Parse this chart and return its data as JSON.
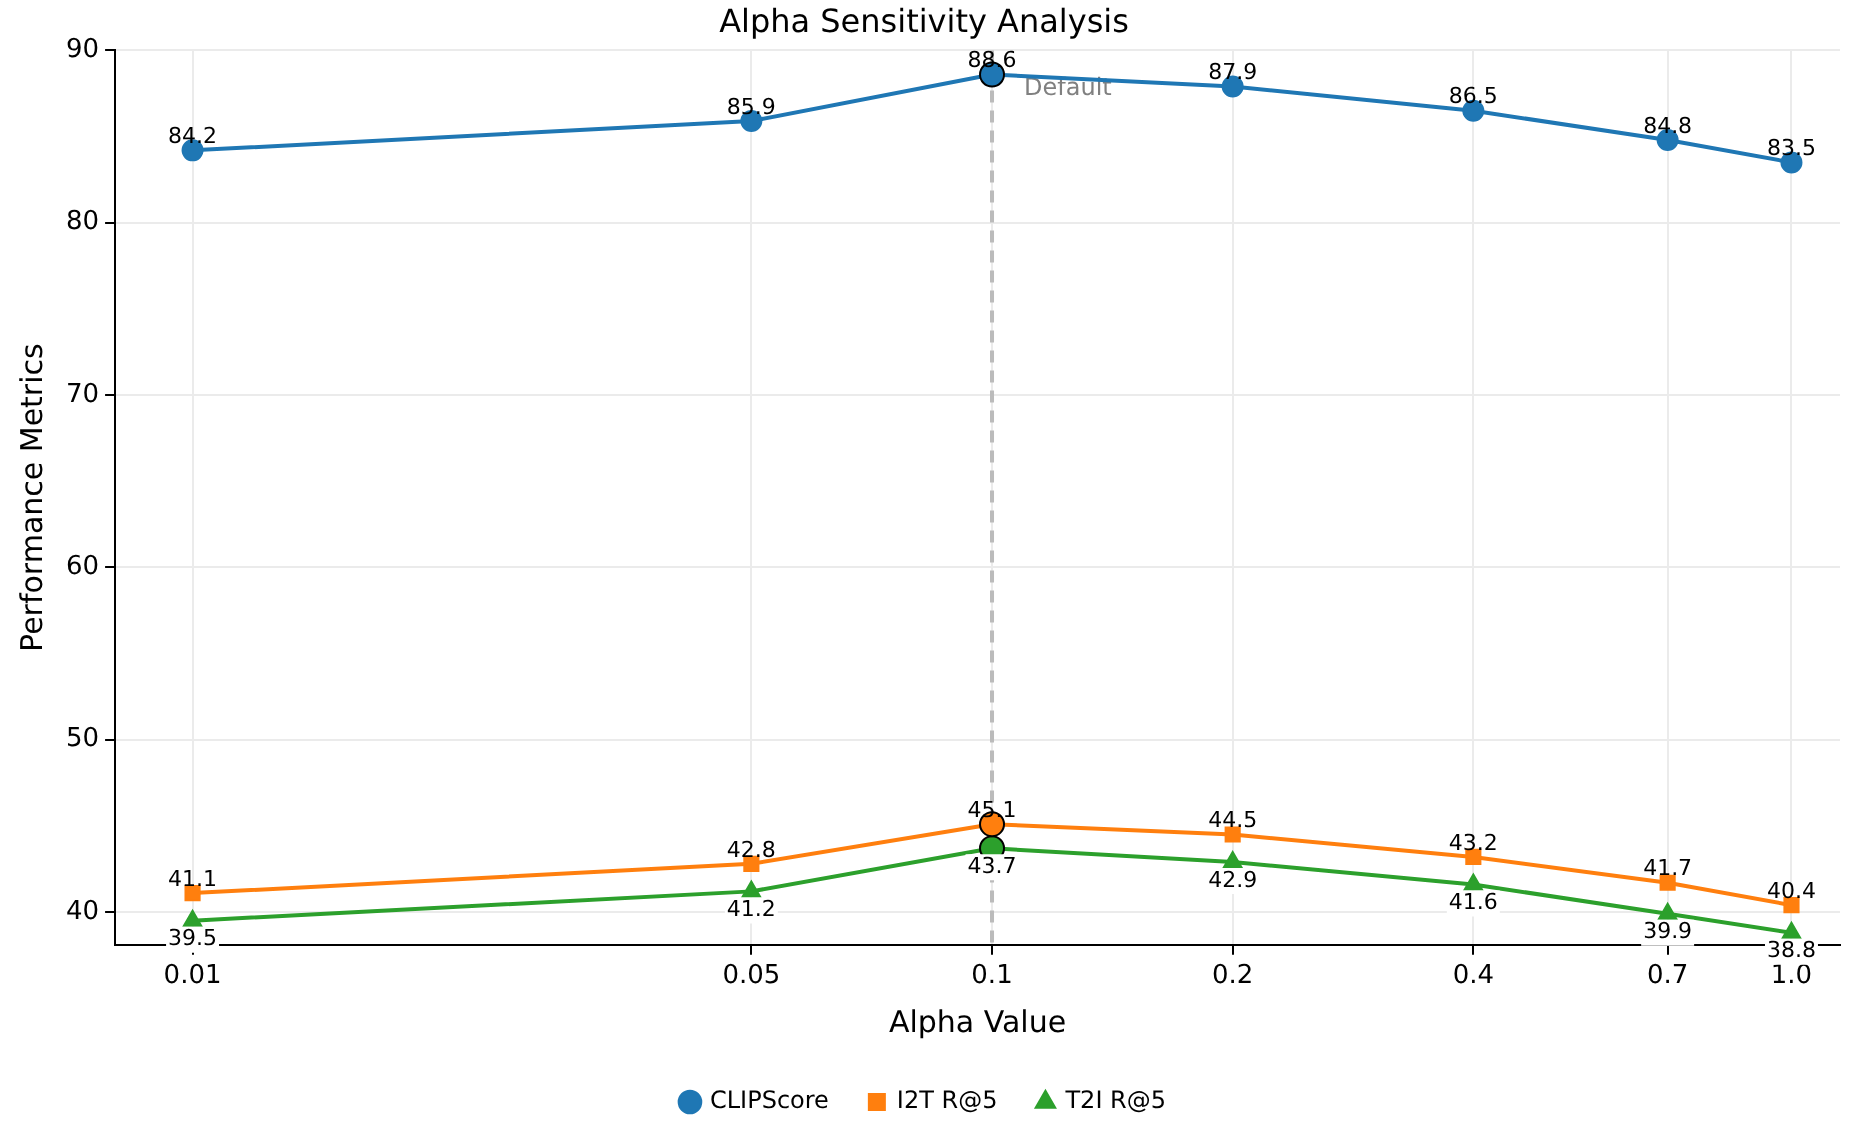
{
  "chart_data": {
    "type": "line",
    "title": "Alpha Sensitivity Analysis",
    "xlabel": "Alpha Value",
    "ylabel": "Performance Metrics",
    "x": [
      0.01,
      0.05,
      0.1,
      0.2,
      0.4,
      0.7,
      1.0
    ],
    "series": [
      {
        "name": "CLIPScore",
        "color": "#1f77b4",
        "marker": "circle",
        "values": [
          84.2,
          85.9,
          88.6,
          87.9,
          86.5,
          84.8,
          83.5
        ]
      },
      {
        "name": "I2T R@5",
        "color": "#ff7f0e",
        "marker": "square",
        "values": [
          41.1,
          42.8,
          45.1,
          44.5,
          43.2,
          41.7,
          40.4
        ]
      },
      {
        "name": "T2I R@5",
        "color": "#2ca02c",
        "marker": "triangle",
        "values": [
          39.5,
          41.2,
          43.7,
          42.9,
          41.6,
          39.9,
          38.8
        ]
      }
    ],
    "log": "x",
    "xlim": [
      0.008,
      1.15
    ],
    "xticks": [
      {
        "value": 0.01,
        "label": "0.01"
      },
      {
        "value": 0.05,
        "label": "0.05"
      },
      {
        "value": 0.1,
        "label": "0.1"
      },
      {
        "value": 0.2,
        "label": "0.2"
      },
      {
        "value": 0.4,
        "label": "0.4"
      },
      {
        "value": 0.7,
        "label": "0.7"
      },
      {
        "value": 1.0,
        "label": "1.0"
      }
    ],
    "ylim": [
      38.1,
      90
    ],
    "yticks": [
      40,
      50,
      60,
      70,
      80,
      90
    ],
    "ref_lines": [
      {
        "axis": "x",
        "value": 0.1,
        "label": "Default",
        "color": "#bbbbbb",
        "line_style": "dashed"
      }
    ],
    "grid": true,
    "legend": "bottom",
    "data_labels": true,
    "line_style": "solid"
  }
}
